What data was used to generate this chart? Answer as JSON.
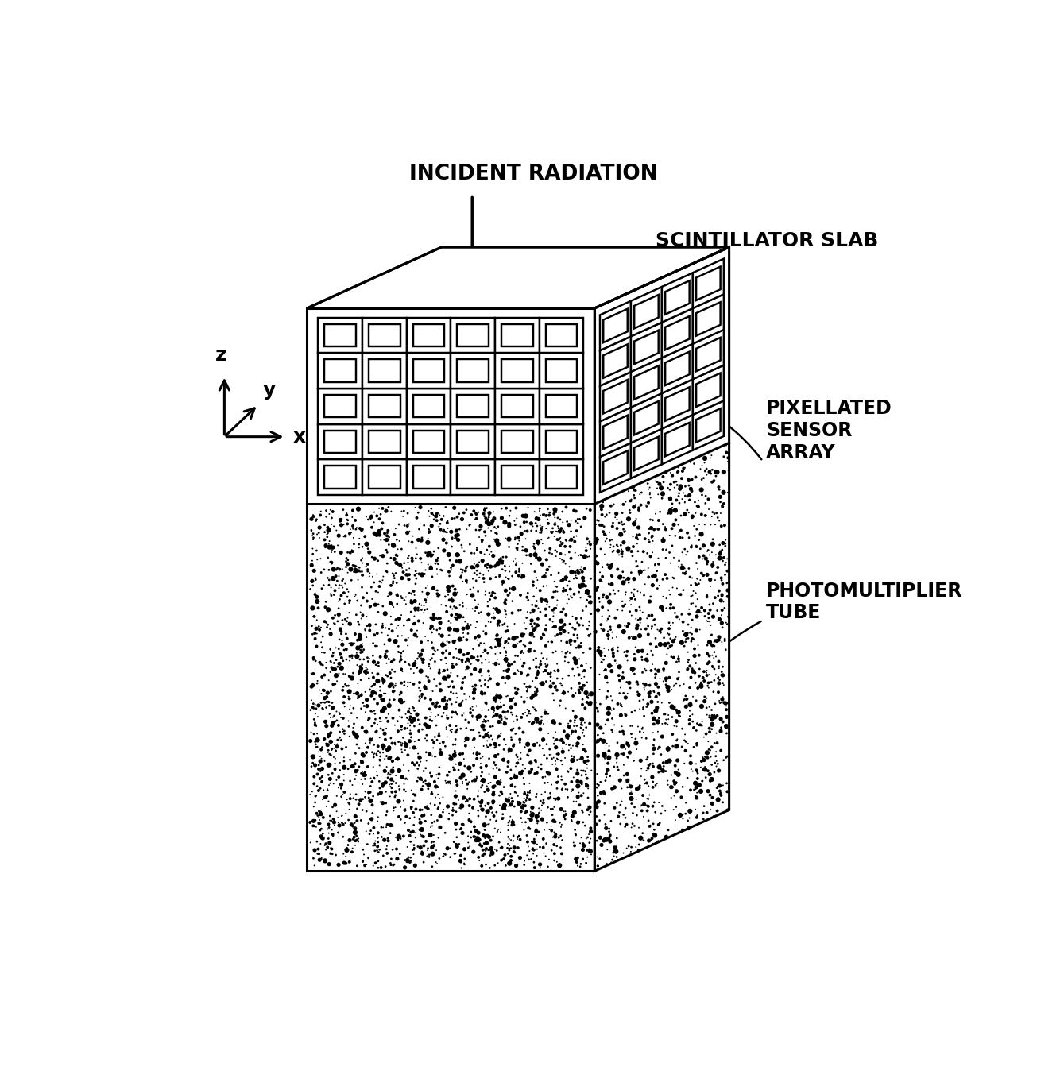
{
  "bg_color": "#ffffff",
  "line_color": "#000000",
  "text_color": "#000000",
  "labels": {
    "incident_radiation": "INCIDENT RADIATION",
    "scintillator_slab": "SCINTILLATOR SLAB",
    "pixellated_sensor_array": "PIXELLATED\nSENSOR\nARRAY",
    "photomultiplier_tube": "PHOTOMULTIPLIER\nTUBE",
    "x_axis": "x",
    "y_axis": "y",
    "z_axis": "z"
  },
  "font_size_labels": 17,
  "font_size_axes": 18,
  "grid_rows_front": 5,
  "grid_cols_front": 6,
  "grid_rows_side": 5,
  "grid_cols_side": 4,
  "lw": 2.2,
  "dot_n_front": 3500,
  "dot_n_side": 1400,
  "dot_size_max": 18
}
